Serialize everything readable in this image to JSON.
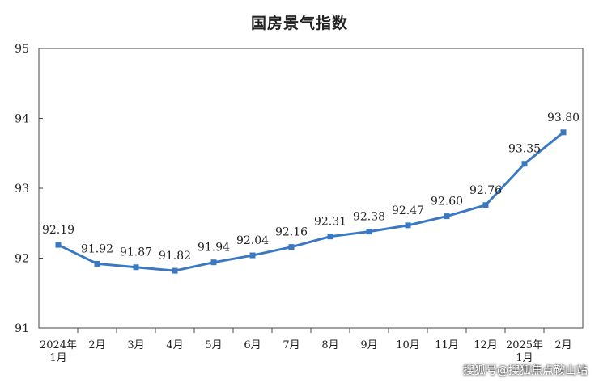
{
  "chart_data": {
    "type": "line",
    "title": "国房景气指数",
    "xlabel": "",
    "ylabel": "",
    "ylim": [
      91,
      95
    ],
    "yticks": [
      "91",
      "92",
      "93",
      "94",
      "95"
    ],
    "grid": false,
    "categories": [
      [
        "2024年",
        "1月"
      ],
      [
        "2月"
      ],
      [
        "3月"
      ],
      [
        "4月"
      ],
      [
        "5月"
      ],
      [
        "6月"
      ],
      [
        "7月"
      ],
      [
        "8月"
      ],
      [
        "9月"
      ],
      [
        "10月"
      ],
      [
        "11月"
      ],
      [
        "12月"
      ],
      [
        "2025年",
        "1月"
      ],
      [
        "2月"
      ]
    ],
    "values": [
      92.19,
      91.92,
      91.87,
      91.82,
      91.94,
      92.04,
      92.16,
      92.31,
      92.38,
      92.47,
      92.6,
      92.76,
      93.35,
      93.8
    ],
    "data_labels": [
      "92.19",
      "91.92",
      "91.87",
      "91.82",
      "91.94",
      "92.04",
      "92.16",
      "92.31",
      "92.38",
      "92.47",
      "92.60",
      "92.76",
      "93.35",
      "93.80"
    ],
    "line_color": "#3a78c2"
  },
  "watermark": "搜狐号@搜狐焦点鞍山站"
}
